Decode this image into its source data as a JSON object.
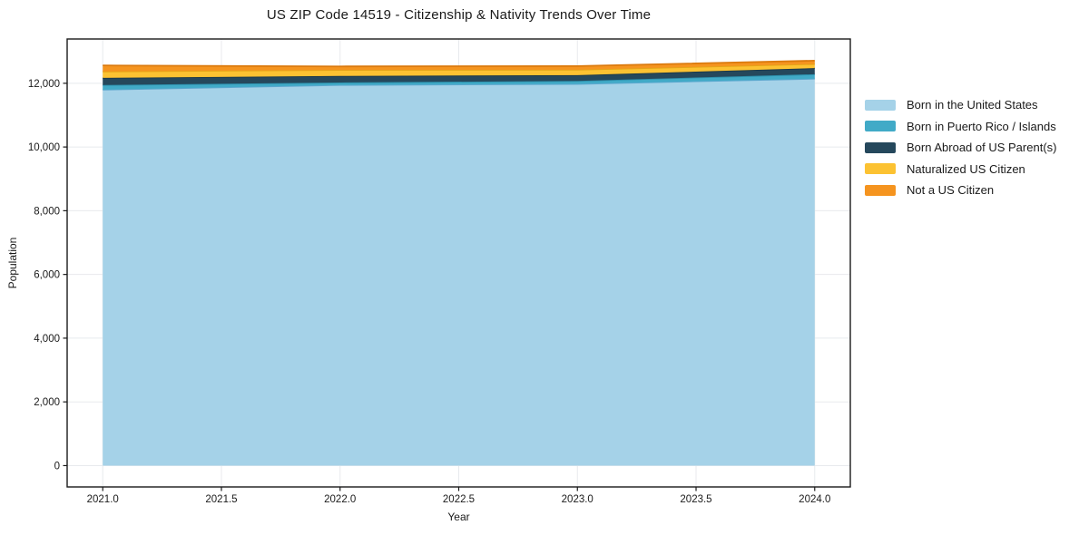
{
  "title": "US ZIP Code 14519 - Citizenship & Nativity Trends Over Time",
  "background_color": "#ffffff",
  "chart_data": {
    "type": "area",
    "stacked": true,
    "title": "US ZIP Code 14519 - Citizenship & Nativity Trends Over Time",
    "xlabel": "Year",
    "ylabel": "Population",
    "x": [
      2021,
      2022,
      2023,
      2024
    ],
    "xlim": [
      2020.85,
      2024.15
    ],
    "ylim": [
      -670,
      13390
    ],
    "xticks": [
      2021.0,
      2021.5,
      2022.0,
      2022.5,
      2023.0,
      2023.5,
      2024.0
    ],
    "xtick_labels": [
      "2021.0",
      "2021.5",
      "2022.0",
      "2022.5",
      "2023.0",
      "2023.5",
      "2024.0"
    ],
    "yticks": [
      0,
      2000,
      4000,
      6000,
      8000,
      10000,
      12000
    ],
    "ytick_labels": [
      "0",
      "2,000",
      "4,000",
      "6,000",
      "8,000",
      "10,000",
      "12,000"
    ],
    "grid": true,
    "gridline_color": "#e8eaed",
    "spine_color": "#1a1a1a",
    "legend_position": "right-outside",
    "series": [
      {
        "name": "Born in the United States",
        "color": "#a5d2e8",
        "edge_color": "#5fa8cf",
        "values": [
          11800,
          11945,
          11980,
          12145
        ]
      },
      {
        "name": "Born in Puerto Rico / Islands",
        "color": "#41aac7",
        "edge_color": "#2d91ad",
        "values": [
          145,
          80,
          95,
          140
        ]
      },
      {
        "name": "Born Abroad of US Parent(s)",
        "color": "#25485c",
        "edge_color": "#1a3747",
        "values": [
          225,
          205,
          180,
          190
        ]
      },
      {
        "name": "Naturalized US Citizen",
        "color": "#fcc232",
        "edge_color": "#e3a517",
        "values": [
          200,
          190,
          170,
          130
        ]
      },
      {
        "name": "Not a US Citizen",
        "color": "#f5941f",
        "edge_color": "#db7a0e",
        "values": [
          190,
          110,
          115,
          105
        ]
      }
    ]
  }
}
